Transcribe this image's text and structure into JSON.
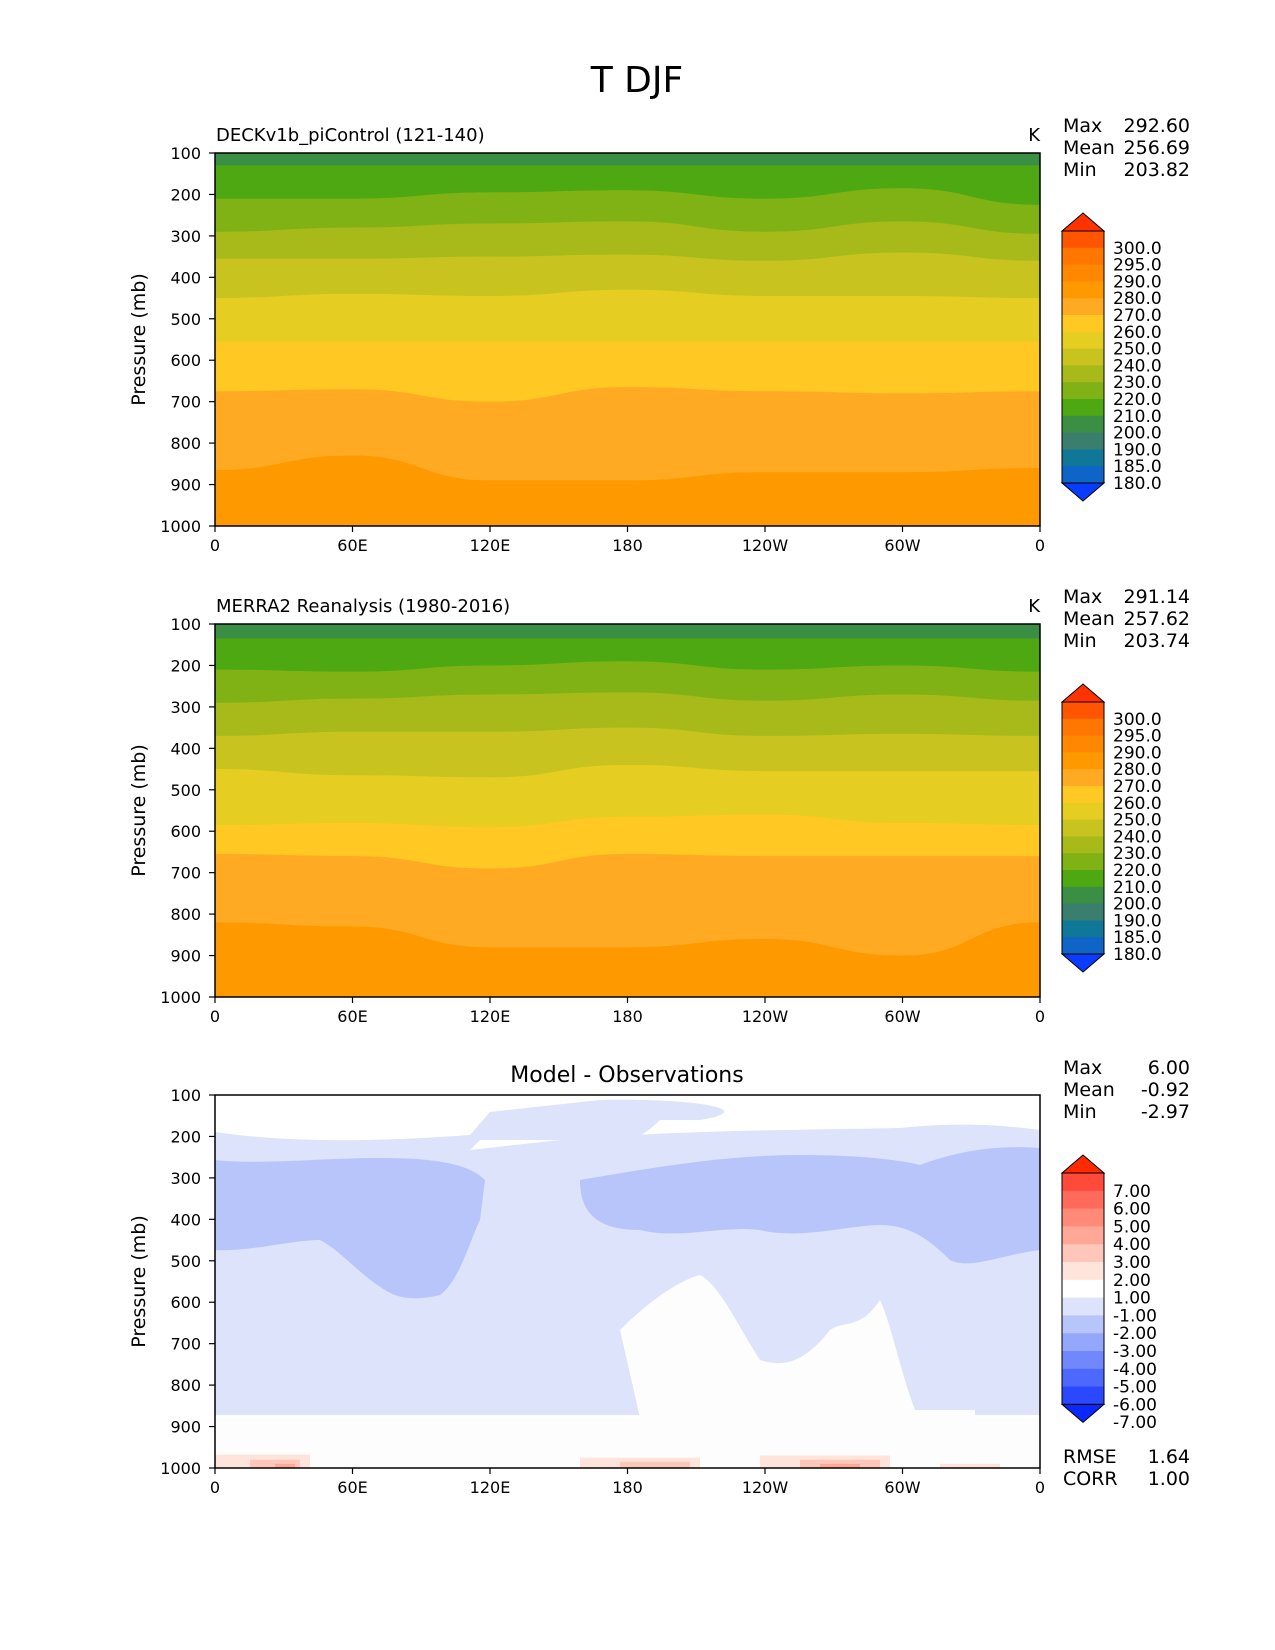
{
  "figure": {
    "title": "T DJF"
  },
  "chart_data": [
    {
      "type": "contour",
      "title": "DECKv1b_piControl (121-140)",
      "units": "K",
      "xlabel": "",
      "ylabel": "Pressure (mb)",
      "x_ticks": [
        "0",
        "60E",
        "120E",
        "180",
        "120W",
        "60W",
        "0"
      ],
      "y_ticks": [
        "100",
        "200",
        "300",
        "400",
        "500",
        "600",
        "700",
        "800",
        "900",
        "1000"
      ],
      "ylim": [
        1000,
        100
      ],
      "xlim": [
        0,
        360
      ],
      "stats": [
        {
          "label": "Max",
          "value": "292.60"
        },
        {
          "label": "Mean",
          "value": "256.69"
        },
        {
          "label": "Min",
          "value": "203.82"
        }
      ],
      "colorbar": {
        "levels": [
          "300.0",
          "295.0",
          "290.0",
          "280.0",
          "270.0",
          "260.0",
          "250.0",
          "240.0",
          "230.0",
          "220.0",
          "210.0",
          "200.0",
          "190.0",
          "185.0",
          "180.0"
        ],
        "colors": [
          "#ff3300",
          "#ff5500",
          "#ff7700",
          "#ff8800",
          "#ff9900",
          "#ffaa22",
          "#ffc822",
          "#e6cd22",
          "#c8c31e",
          "#a7ba19",
          "#80b216",
          "#4ea812",
          "#3a8f45",
          "#3a7e6e",
          "#0f7898",
          "#0f64c8",
          "#0a3cff"
        ]
      },
      "level_boundaries": [
        {
          "level": 210,
          "pressure": [
            130,
            130,
            130,
            130,
            130,
            130,
            130
          ]
        },
        {
          "level": 220,
          "pressure": [
            210,
            210,
            195,
            190,
            210,
            185,
            225
          ]
        },
        {
          "level": 230,
          "pressure": [
            290,
            280,
            270,
            265,
            290,
            265,
            295
          ]
        },
        {
          "level": 240,
          "pressure": [
            355,
            355,
            350,
            345,
            360,
            340,
            360
          ]
        },
        {
          "level": 250,
          "pressure": [
            450,
            440,
            445,
            430,
            445,
            445,
            450
          ]
        },
        {
          "level": 260,
          "pressure": [
            555,
            555,
            555,
            555,
            555,
            555,
            555
          ]
        },
        {
          "level": 270,
          "pressure": [
            675,
            670,
            700,
            665,
            675,
            680,
            675
          ]
        },
        {
          "level": 280,
          "pressure": [
            865,
            830,
            890,
            890,
            870,
            870,
            860
          ]
        }
      ]
    },
    {
      "type": "contour",
      "title": "MERRA2 Reanalysis (1980-2016)",
      "units": "K",
      "xlabel": "",
      "ylabel": "Pressure (mb)",
      "x_ticks": [
        "0",
        "60E",
        "120E",
        "180",
        "120W",
        "60W",
        "0"
      ],
      "y_ticks": [
        "100",
        "200",
        "300",
        "400",
        "500",
        "600",
        "700",
        "800",
        "900",
        "1000"
      ],
      "ylim": [
        1000,
        100
      ],
      "xlim": [
        0,
        360
      ],
      "stats": [
        {
          "label": "Max",
          "value": "291.14"
        },
        {
          "label": "Mean",
          "value": "257.62"
        },
        {
          "label": "Min",
          "value": "203.74"
        }
      ],
      "colorbar": {
        "levels": [
          "300.0",
          "295.0",
          "290.0",
          "280.0",
          "270.0",
          "260.0",
          "250.0",
          "240.0",
          "230.0",
          "220.0",
          "210.0",
          "200.0",
          "190.0",
          "185.0",
          "180.0"
        ],
        "colors": [
          "#ff3300",
          "#ff5500",
          "#ff7700",
          "#ff8800",
          "#ff9900",
          "#ffaa22",
          "#ffc822",
          "#e6cd22",
          "#c8c31e",
          "#a7ba19",
          "#80b216",
          "#4ea812",
          "#3a8f45",
          "#3a7e6e",
          "#0f7898",
          "#0f64c8",
          "#0a3cff"
        ]
      },
      "level_boundaries": [
        {
          "level": 210,
          "pressure": [
            135,
            135,
            135,
            135,
            135,
            135,
            135
          ]
        },
        {
          "level": 220,
          "pressure": [
            210,
            215,
            200,
            190,
            210,
            200,
            215
          ]
        },
        {
          "level": 230,
          "pressure": [
            290,
            280,
            270,
            265,
            285,
            270,
            285
          ]
        },
        {
          "level": 240,
          "pressure": [
            370,
            360,
            360,
            350,
            370,
            365,
            370
          ]
        },
        {
          "level": 250,
          "pressure": [
            450,
            465,
            470,
            440,
            455,
            455,
            455
          ]
        },
        {
          "level": 260,
          "pressure": [
            585,
            580,
            590,
            565,
            560,
            580,
            585
          ]
        },
        {
          "level": 270,
          "pressure": [
            655,
            660,
            690,
            655,
            660,
            660,
            660
          ]
        },
        {
          "level": 280,
          "pressure": [
            820,
            830,
            880,
            880,
            860,
            900,
            820
          ]
        }
      ]
    },
    {
      "type": "contour",
      "title": "Model - Observations",
      "units": "",
      "xlabel": "",
      "ylabel": "Pressure (mb)",
      "x_ticks": [
        "0",
        "60E",
        "120E",
        "180",
        "120W",
        "60W",
        "0"
      ],
      "y_ticks": [
        "100",
        "200",
        "300",
        "400",
        "500",
        "600",
        "700",
        "800",
        "900",
        "1000"
      ],
      "ylim": [
        1000,
        100
      ],
      "xlim": [
        0,
        360
      ],
      "stats": [
        {
          "label": "Max",
          "value": "6.00"
        },
        {
          "label": "Mean",
          "value": "-0.92"
        },
        {
          "label": "Min",
          "value": "-2.97"
        }
      ],
      "extra_stats": [
        {
          "label": "RMSE",
          "value": "1.64"
        },
        {
          "label": "CORR",
          "value": "1.00"
        }
      ],
      "colorbar": {
        "levels": [
          "7.00",
          "6.00",
          "5.00",
          "4.00",
          "3.00",
          "2.00",
          "1.00",
          "-1.00",
          "-2.00",
          "-3.00",
          "-4.00",
          "-5.00",
          "-6.00",
          "-7.00"
        ],
        "colors": [
          "#ff2a00",
          "#ff4a3a",
          "#ff6a5a",
          "#ff8a78",
          "#ffa898",
          "#ffc6ba",
          "#ffe4dc",
          "#ffffff",
          "#dce3fa",
          "#b7c5fb",
          "#94a8fb",
          "#7088fc",
          "#4c68fd",
          "#2a48fe",
          "#0a28ff"
        ]
      },
      "regions": [
        {
          "value": "-1 to -2",
          "description": "upper and mid troposphere, 200-880 mb"
        },
        {
          "value": "-2 to -3",
          "description": "250-580 mb bands near 0-80E, 140W-0"
        },
        {
          "value": "-1 to 1",
          "description": "near surface 880-1000 mb, 180-60W below 600 mb, top near 180"
        },
        {
          "value": "1 to 4",
          "description": "surface layer near 30E and 100W-80W"
        }
      ]
    }
  ]
}
